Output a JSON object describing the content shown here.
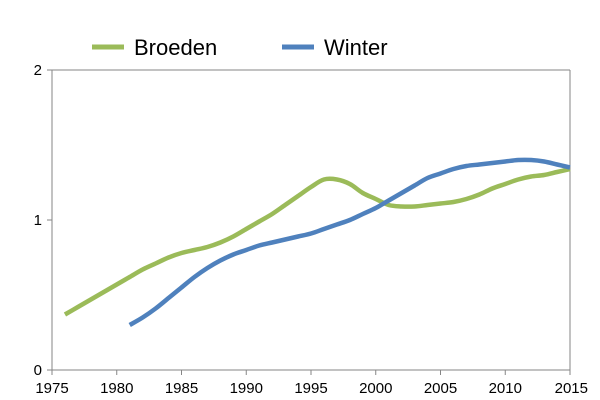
{
  "chart_data": {
    "type": "line",
    "title": "",
    "xlabel": "",
    "ylabel": "",
    "xlim": [
      1975,
      2015
    ],
    "ylim": [
      0,
      2
    ],
    "x_ticks": [
      "1975",
      "1980",
      "1985",
      "1990",
      "1995",
      "2000",
      "2005",
      "2010",
      "2015"
    ],
    "y_ticks": [
      "0",
      "1",
      "2"
    ],
    "grid": false,
    "legend_position": "top",
    "series": [
      {
        "name": "Broeden",
        "color": "#9BBB59",
        "x": [
          1976,
          1977,
          1978,
          1979,
          1980,
          1981,
          1982,
          1983,
          1984,
          1985,
          1986,
          1987,
          1988,
          1989,
          1990,
          1991,
          1992,
          1993,
          1994,
          1995,
          1996,
          1997,
          1998,
          1999,
          2000,
          2001,
          2002,
          2003,
          2004,
          2005,
          2006,
          2007,
          2008,
          2009,
          2010,
          2011,
          2012,
          2013,
          2014,
          2015
        ],
        "y": [
          0.37,
          0.42,
          0.47,
          0.52,
          0.57,
          0.62,
          0.67,
          0.71,
          0.75,
          0.78,
          0.8,
          0.82,
          0.85,
          0.89,
          0.94,
          0.99,
          1.04,
          1.1,
          1.16,
          1.22,
          1.27,
          1.27,
          1.24,
          1.18,
          1.14,
          1.1,
          1.09,
          1.09,
          1.1,
          1.11,
          1.12,
          1.14,
          1.17,
          1.21,
          1.24,
          1.27,
          1.29,
          1.3,
          1.32,
          1.34
        ]
      },
      {
        "name": "Winter",
        "color": "#4F81BD",
        "x": [
          1981,
          1982,
          1983,
          1984,
          1985,
          1986,
          1987,
          1988,
          1989,
          1990,
          1991,
          1992,
          1993,
          1994,
          1995,
          1996,
          1997,
          1998,
          1999,
          2000,
          2001,
          2002,
          2003,
          2004,
          2005,
          2006,
          2007,
          2008,
          2009,
          2010,
          2011,
          2012,
          2013,
          2014,
          2015
        ],
        "y": [
          0.3,
          0.35,
          0.41,
          0.48,
          0.55,
          0.62,
          0.68,
          0.73,
          0.77,
          0.8,
          0.83,
          0.85,
          0.87,
          0.89,
          0.91,
          0.94,
          0.97,
          1.0,
          1.04,
          1.08,
          1.13,
          1.18,
          1.23,
          1.28,
          1.31,
          1.34,
          1.36,
          1.37,
          1.38,
          1.39,
          1.4,
          1.4,
          1.39,
          1.37,
          1.35
        ]
      }
    ]
  }
}
